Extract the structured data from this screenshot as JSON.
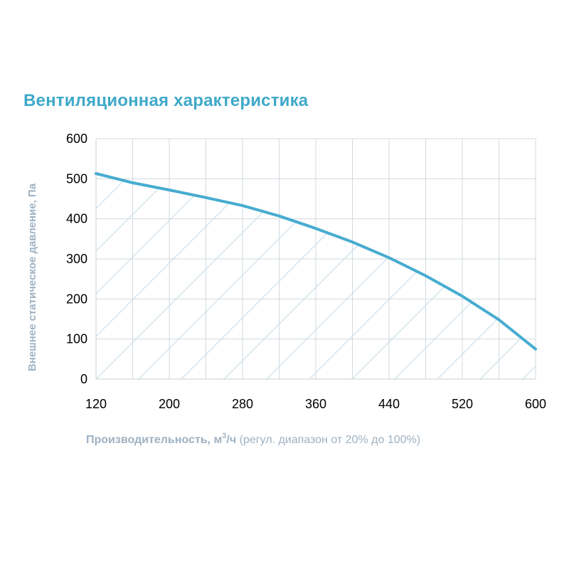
{
  "chart_data": {
    "type": "area",
    "title": "Вентиляционная характеристика",
    "ylabel": "Внешнее статическое давление, Па",
    "xlabel": {
      "main": "Производительность, м",
      "superscript": "3",
      "unit_suffix": "/ч",
      "note": " (регул. диапазон от 20% до 100%)"
    },
    "xlim": [
      120,
      600
    ],
    "ylim": [
      0,
      600
    ],
    "x_ticks": [
      120,
      200,
      280,
      360,
      440,
      520,
      600
    ],
    "y_ticks": [
      0,
      100,
      200,
      300,
      400,
      500,
      600
    ],
    "grid": true,
    "fill_pattern": "diagonal-hatch",
    "series": [
      {
        "x": [
          120,
          160,
          200,
          240,
          280,
          320,
          360,
          400,
          440,
          480,
          520,
          560,
          600
        ],
        "values": [
          513,
          490,
          472,
          453,
          433,
          407,
          376,
          342,
          303,
          258,
          207,
          148,
          75
        ]
      }
    ],
    "colors": {
      "line": "#47acd0",
      "hatch": "#c5dde8",
      "grid": "#d2d8de",
      "title": "#3fa9c9",
      "axis_label": "#9fb2c2"
    }
  }
}
